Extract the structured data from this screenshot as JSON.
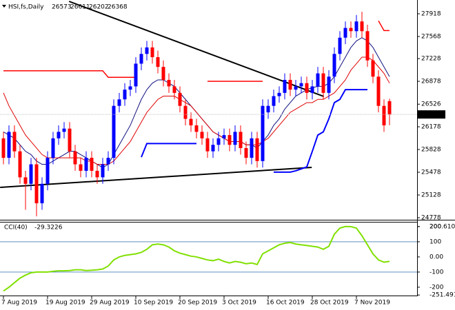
{
  "chart_data": [
    {
      "type": "candlestick",
      "name": "HSI,fs,Daily",
      "categories": [
        "7 Aug 2019",
        null,
        null,
        null,
        null,
        null,
        null,
        null,
        "19 Aug 2019",
        null,
        null,
        null,
        null,
        null,
        null,
        null,
        "29 Aug 2019",
        null,
        null,
        null,
        null,
        null,
        null,
        null,
        "10 Sep 2019",
        null,
        null,
        null,
        null,
        null,
        null,
        null,
        "20 Sep 2019",
        null,
        null,
        null,
        null,
        null,
        null,
        null,
        "3 Oct 2019",
        null,
        null,
        null,
        null,
        null,
        null,
        null,
        "16 Oct 2019",
        null,
        null,
        null,
        null,
        null,
        null,
        null,
        "28 Oct 2019",
        null,
        null,
        null,
        null,
        null,
        null,
        null,
        "7 Nov 2019",
        null,
        null,
        null,
        null,
        null,
        null
      ],
      "open": [
        26000,
        25700,
        26100,
        25800,
        25400,
        25300,
        25600,
        25000,
        25300,
        25700,
        26000,
        26100,
        26150,
        25800,
        25600,
        25500,
        25700,
        25500,
        25400,
        25600,
        25700,
        26500,
        26600,
        26750,
        26800,
        27150,
        27300,
        27400,
        27250,
        27100,
        26900,
        26800,
        26700,
        26500,
        26300,
        26200,
        26100,
        26000,
        25800,
        25900,
        26000,
        26050,
        25900,
        26100,
        25850,
        25700,
        26000,
        25650,
        26400,
        26500,
        26650,
        26700,
        26900,
        26750,
        26800,
        26850,
        26700,
        26800,
        27000,
        26700,
        26950,
        27300,
        27550,
        27700,
        27650,
        27800,
        27650,
        27200,
        26950,
        26500,
        26573
      ],
      "high": [
        26100,
        26200,
        26200,
        25900,
        25500,
        25700,
        25700,
        25400,
        25800,
        26100,
        26200,
        26250,
        26250,
        25900,
        25700,
        25800,
        25800,
        25600,
        25700,
        25800,
        26600,
        26700,
        26850,
        26900,
        27250,
        27400,
        27500,
        27500,
        27350,
        27200,
        27000,
        26900,
        26800,
        26600,
        26400,
        26300,
        26200,
        26100,
        26000,
        26100,
        26150,
        26150,
        26200,
        26200,
        25950,
        26100,
        26100,
        26600,
        26600,
        26750,
        26800,
        27000,
        27000,
        26900,
        26950,
        26950,
        26900,
        27100,
        27100,
        27050,
        27400,
        27650,
        27800,
        27800,
        27900,
        27950,
        27750,
        27300,
        27050,
        26600,
        26611
      ],
      "low": [
        25600,
        25600,
        25700,
        25300,
        24900,
        25200,
        24800,
        24900,
        25200,
        25600,
        25900,
        26000,
        25700,
        25500,
        25400,
        25400,
        25400,
        25300,
        25300,
        25500,
        25600,
        26400,
        26500,
        26650,
        26700,
        27050,
        27200,
        27150,
        27000,
        26800,
        26700,
        26600,
        26400,
        26200,
        26100,
        26000,
        25900,
        25700,
        25700,
        25800,
        25900,
        25800,
        25800,
        25750,
        25600,
        25600,
        25550,
        25550,
        26300,
        26400,
        26550,
        26600,
        26650,
        26650,
        26700,
        26600,
        26600,
        26700,
        26600,
        26600,
        26850,
        27200,
        27450,
        27550,
        27550,
        27550,
        27100,
        26850,
        26400,
        26100,
        26202
      ],
      "close": [
        25700,
        26100,
        25800,
        25400,
        25300,
        25600,
        25000,
        25300,
        25700,
        26000,
        26100,
        26150,
        25800,
        25600,
        25500,
        25700,
        25500,
        25400,
        25600,
        25700,
        26500,
        26600,
        26750,
        26800,
        27150,
        27300,
        27400,
        27250,
        27100,
        26900,
        26800,
        26700,
        26500,
        26300,
        26200,
        26100,
        26000,
        25800,
        25900,
        26000,
        26050,
        25900,
        26100,
        25850,
        25700,
        26000,
        25650,
        26500,
        26500,
        26650,
        26700,
        26900,
        26750,
        26800,
        26850,
        26700,
        26800,
        27000,
        26700,
        26950,
        27300,
        27550,
        27700,
        27650,
        27800,
        27650,
        27200,
        26950,
        26500,
        26200,
        26368
      ],
      "up_color": "#0000ff",
      "down_color": "#ff0000",
      "series": [
        {
          "color": "#ff0000",
          "width": 1.5,
          "values": [
            27040,
            27040,
            27040,
            27040,
            27040,
            27040,
            27040,
            27040,
            27040,
            27040,
            27040,
            27040,
            27040,
            27040,
            27040,
            27040,
            27040,
            27040,
            27040,
            26940,
            26940,
            26940,
            26940,
            26940,
            26940,
            null,
            null,
            null,
            null,
            null,
            null,
            null,
            null,
            null,
            null,
            null,
            null,
            26878,
            26878,
            26878,
            26878,
            26878,
            26878,
            26878,
            26878,
            26878,
            26878,
            26878,
            null,
            null,
            null,
            null,
            null,
            null,
            null,
            null,
            null,
            null,
            null,
            null,
            null,
            null,
            null,
            null,
            null,
            null,
            null,
            null,
            27810,
            27660,
            27660
          ]
        },
        {
          "color": "#0000ff",
          "width": 2,
          "values": [
            null,
            null,
            null,
            null,
            null,
            null,
            null,
            null,
            null,
            null,
            null,
            null,
            null,
            null,
            null,
            null,
            null,
            null,
            null,
            null,
            null,
            null,
            null,
            null,
            null,
            25710,
            25920,
            25920,
            25920,
            25920,
            25920,
            25920,
            25920,
            25920,
            25920,
            25920,
            null,
            null,
            null,
            null,
            null,
            null,
            null,
            null,
            null,
            null,
            null,
            null,
            null,
            25480,
            25480,
            25480,
            25480,
            25500,
            25530,
            25560,
            25800,
            26050,
            26100,
            26300,
            26550,
            26600,
            26750,
            26750,
            26750,
            26750,
            26750,
            null,
            null,
            null,
            null
          ]
        },
        {
          "color": "#101080",
          "width": 1,
          "values": [
            26100,
            26050,
            26000,
            25900,
            25800,
            25750,
            25650,
            25600,
            25600,
            25650,
            25700,
            25750,
            25800,
            25800,
            25750,
            25700,
            25650,
            25600,
            25550,
            25600,
            25750,
            25900,
            26050,
            26200,
            26400,
            26600,
            26750,
            26850,
            26900,
            26900,
            26850,
            26800,
            26700,
            26600,
            26500,
            26400,
            26300,
            26200,
            26100,
            26050,
            26000,
            25950,
            25950,
            25950,
            25900,
            25900,
            25850,
            25950,
            26050,
            26200,
            26300,
            26450,
            26550,
            26650,
            26700,
            26750,
            26780,
            26800,
            26800,
            26850,
            26950,
            27100,
            27250,
            27400,
            27500,
            27550,
            27500,
            27400,
            27250,
            27100,
            26950
          ]
        },
        {
          "color": "#e00000",
          "width": 1,
          "values": [
            26700,
            26500,
            26350,
            26200,
            26050,
            25950,
            25850,
            25750,
            25700,
            25700,
            25700,
            25700,
            25700,
            25700,
            25700,
            25650,
            25650,
            25600,
            25600,
            25600,
            25650,
            25750,
            25850,
            25950,
            26100,
            26250,
            26400,
            26500,
            26600,
            26650,
            26650,
            26650,
            26600,
            26550,
            26500,
            26400,
            26300,
            26200,
            26100,
            26050,
            26000,
            25950,
            25950,
            25950,
            25900,
            25900,
            25900,
            25950,
            26000,
            26100,
            26200,
            26300,
            26400,
            26450,
            26500,
            26550,
            26550,
            26600,
            26600,
            26650,
            26700,
            26800,
            26900,
            27050,
            27150,
            27250,
            27250,
            27200,
            27100,
            27000,
            26850
          ]
        }
      ],
      "trendlines": [
        {
          "color": "#000000",
          "x": [
            11.9,
            58.1
          ],
          "y": [
            28109,
            26645
          ]
        },
        {
          "color": "#000000",
          "x": [
            -0.6,
            55.9
          ],
          "y": [
            25245,
            25553
          ]
        }
      ],
      "ylim": [
        24757,
        28109
      ],
      "yticks": [
        27918,
        27568,
        27228,
        26878,
        26526,
        26178,
        25828,
        25478,
        25128,
        24778
      ]
    },
    {
      "type": "line",
      "name": "CCI(40)",
      "color": "#80e000",
      "values": [
        -225,
        -200,
        -170,
        -140,
        -120,
        -105,
        -100,
        -100,
        -100,
        -95,
        -92,
        -92,
        -90,
        -85,
        -85,
        -90,
        -88,
        -85,
        -80,
        -60,
        -20,
        0,
        10,
        15,
        20,
        30,
        50,
        80,
        85,
        80,
        65,
        40,
        25,
        15,
        5,
        0,
        -10,
        -20,
        -25,
        -15,
        -30,
        -40,
        -30,
        -35,
        -45,
        -40,
        -50,
        20,
        40,
        60,
        80,
        90,
        95,
        85,
        80,
        75,
        70,
        65,
        50,
        70,
        150,
        190,
        200.6101,
        200,
        190,
        140,
        80,
        20,
        -20,
        -35,
        -29.3226
      ],
      "level_lines": [
        100,
        -100
      ],
      "ylim": [
        -255,
        227
      ],
      "yticks": [
        200.6101,
        200,
        100,
        {
          "value": 0,
          "label": "0.00"
        },
        -100,
        -200,
        -251.491
      ]
    }
  ]
}
